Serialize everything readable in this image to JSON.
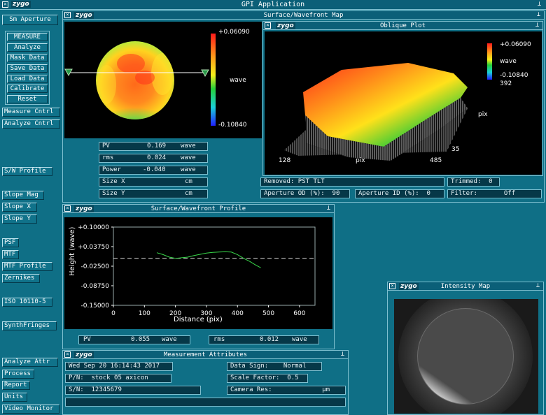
{
  "app": {
    "title": "GPI Application",
    "logo": "zygo"
  },
  "left_panel": {
    "aperture_label": "Sm Aperture",
    "measure": "MEASURE",
    "analyze": "Analyze",
    "mask_data": "Mask Data",
    "save_data": "Save Data",
    "load_data": "Load Data",
    "calibrate": "Calibrate",
    "reset": "Reset",
    "measure_cntrl": "Measure Cntrl",
    "analyze_cntrl": "Analyze Cntrl",
    "sw_profile": "S/W Profile",
    "slope_mag": "Slope Mag",
    "slope_x": "Slope X",
    "slope_y": "Slope Y",
    "psf": "PSF",
    "mtf": "MTF",
    "mtf_profile": "MTF Profile",
    "zernikes": "Zernikes",
    "iso": "ISO 10110-5",
    "synthfringes": "SynthFringes",
    "analyze_attr": "Analyze Attr",
    "process": "Process",
    "report": "Report",
    "units": "Units",
    "video_monitor": "Video Monitor"
  },
  "surface_map": {
    "title": "Surface/Wavefront Map",
    "scale_max": "+0.06090",
    "scale_unit": "wave",
    "scale_min": "-0.10840",
    "stats": [
      {
        "label": "PV",
        "value": "0.169",
        "unit": "wave"
      },
      {
        "label": "rms",
        "value": "0.024",
        "unit": "wave"
      },
      {
        "label": "Power",
        "value": "-0.040",
        "unit": "wave"
      },
      {
        "label": "Size X",
        "value": "",
        "unit": "cm"
      },
      {
        "label": "Size Y",
        "value": "",
        "unit": "cm"
      }
    ]
  },
  "oblique": {
    "title": "Oblique Plot",
    "scale_max": "+0.06090",
    "scale_unit": "wave",
    "scale_min": "-0.10840",
    "y_top": "392",
    "y_unit": "pix",
    "y_bottom": "35",
    "x_left": "128",
    "x_unit": "pix",
    "x_right": "485"
  },
  "info": {
    "removed": "Removed: PST TLT",
    "trimmed": "Trimmed:  0",
    "aperture_od": "Aperture OD (%):  90",
    "aperture_id": "Aperture ID (%):  0",
    "filter": "Filter:       Off"
  },
  "profile": {
    "title": "Surface/Wavefront Profile",
    "ylabel": "Height (wave)",
    "xlabel": "Distance (pix)",
    "y_ticks": [
      "+0.10000",
      "+0.03750",
      "-0.02500",
      "-0.08750",
      "-0.15000"
    ],
    "x_ticks": [
      "0",
      "100",
      "200",
      "300",
      "400",
      "500",
      "600"
    ],
    "pv_label": "PV",
    "pv_value": "0.055",
    "pv_unit": "wave",
    "rms_label": "rms",
    "rms_value": "0.012",
    "rms_unit": "wave"
  },
  "chart_data": {
    "type": "line",
    "xlabel": "Distance (pix)",
    "ylabel": "Height (wave)",
    "xlim": [
      0,
      650
    ],
    "ylim": [
      -0.15,
      0.1
    ],
    "reference_line_y": 0.0,
    "series": [
      {
        "color": "#39d84a",
        "x": [
          140,
          160,
          180,
          200,
          220,
          240,
          260,
          280,
          300,
          320,
          340,
          360,
          380,
          400,
          420,
          440,
          460,
          475
        ],
        "y": [
          0.018,
          0.012,
          0.004,
          0.0,
          0.002,
          0.004,
          0.009,
          0.013,
          0.017,
          0.019,
          0.02,
          0.021,
          0.02,
          0.012,
          0.0,
          -0.01,
          -0.022,
          -0.03
        ]
      }
    ]
  },
  "attributes": {
    "title": "Measurement Attributes",
    "date": "Wed Sep 20 16:14:43 2017",
    "pn": "P/N:  stock 05 axicon",
    "sn": "S/N:  12345679",
    "data_sign": "Data Sign:    Normal",
    "scale_factor": "Scale Factor:  0.5",
    "camera_res": "Camera Res:",
    "camera_res_unit": "µm"
  },
  "intensity": {
    "title": "Intensity Map"
  }
}
